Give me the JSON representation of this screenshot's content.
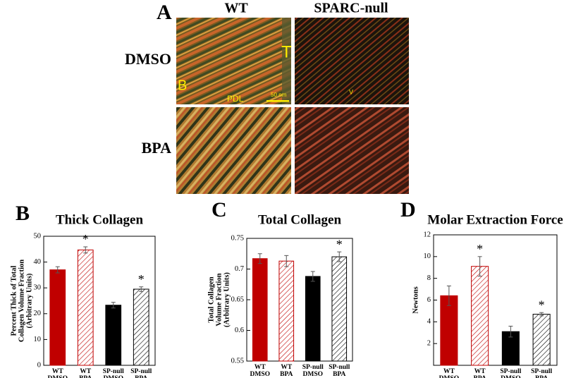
{
  "figure": {
    "panel_a": "A",
    "col_wt": "WT",
    "col_null": "SPARC-null",
    "row_dmso": "DMSO",
    "row_bpa": "BPA",
    "img_label_b": "B",
    "img_label_t": "T",
    "img_label_pdl": "PDL",
    "img_label_scale": "50 nm",
    "img_label_v": "V"
  },
  "chart_data": [
    {
      "type": "bar",
      "panel": "B",
      "title": "Thick Collagen",
      "ylabel": [
        "Percent Thick of Total",
        "Collagen Volume Fraction",
        "(Arbitrary Units)"
      ],
      "categories": [
        [
          "WT",
          "DMSO"
        ],
        [
          "WT",
          "BPA"
        ],
        [
          "SP-null",
          "DMSO"
        ],
        [
          "SP-null",
          "BPA"
        ]
      ],
      "values": [
        37,
        44.7,
        23.3,
        29.5
      ],
      "errors": [
        1.2,
        1.2,
        1.1,
        0.9
      ],
      "annotations": [
        null,
        "*",
        null,
        "*"
      ],
      "colors": [
        "#c00000",
        "#c00000",
        "#000000",
        "#000000"
      ],
      "hatch": [
        false,
        true,
        false,
        true
      ],
      "ylim": [
        0,
        50
      ],
      "yticks": [
        0,
        10,
        20,
        30,
        40,
        50
      ]
    },
    {
      "type": "bar",
      "panel": "C",
      "title": "Total Collagen",
      "ylabel": [
        "Total Collagen",
        "Volume Fraction",
        "(Arbitrary Units)"
      ],
      "categories": [
        [
          "WT",
          "DMSO"
        ],
        [
          "WT",
          "BPA"
        ],
        [
          "SP-null",
          "DMSO"
        ],
        [
          "SP-null",
          "BPA"
        ]
      ],
      "values": [
        0.717,
        0.713,
        0.688,
        0.72
      ],
      "errors": [
        0.008,
        0.009,
        0.008,
        0.008
      ],
      "annotations": [
        null,
        null,
        null,
        "*"
      ],
      "colors": [
        "#c00000",
        "#c00000",
        "#000000",
        "#000000"
      ],
      "hatch": [
        false,
        true,
        false,
        true
      ],
      "ylim": [
        0.55,
        0.75
      ],
      "yticks": [
        0.55,
        0.6,
        0.65,
        0.7,
        0.75
      ]
    },
    {
      "type": "bar",
      "panel": "D",
      "title": "Molar Extraction Force",
      "ylabel": [
        "Newtons"
      ],
      "categories": [
        [
          "WT",
          "DMSO"
        ],
        [
          "WT",
          "BPA"
        ],
        [
          "SP-null",
          "DMSO"
        ],
        [
          "SP-null",
          "BPA"
        ]
      ],
      "values": [
        6.4,
        9.1,
        3.1,
        4.7
      ],
      "errors": [
        0.9,
        0.9,
        0.5,
        0.15
      ],
      "annotations": [
        null,
        "*",
        null,
        "*"
      ],
      "colors": [
        "#c00000",
        "#c00000",
        "#000000",
        "#000000"
      ],
      "hatch": [
        false,
        true,
        false,
        true
      ],
      "ylim": [
        0,
        12
      ],
      "yticks": [
        2,
        4,
        6,
        8,
        10,
        12
      ]
    }
  ]
}
